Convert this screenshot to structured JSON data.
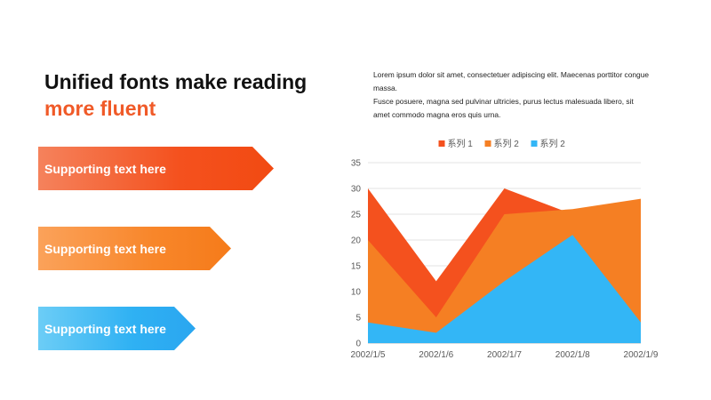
{
  "title": {
    "line1": "Unified fonts make reading",
    "line2": "more fluent"
  },
  "description": {
    "paragraph1": "Lorem ipsum dolor sit amet, consectetuer adipiscing elit. Maecenas porttitor congue massa.",
    "paragraph2": "Fusce posuere, magna sed pulvinar ultricies, purus lectus malesuada libero, sit amet commodo magna eros quis urna."
  },
  "arrows": [
    {
      "label": "Supporting text here",
      "color": "#f4511e"
    },
    {
      "label": "Supporting text here",
      "color": "#f8862a"
    },
    {
      "label": "Supporting text here",
      "color": "#2fb1f3"
    }
  ],
  "chart_data": {
    "type": "area",
    "title": "",
    "xlabel": "",
    "ylabel": "",
    "categories": [
      "2002/1/5",
      "2002/1/6",
      "2002/1/7",
      "2002/1/8",
      "2002/1/9"
    ],
    "ylim": [
      0,
      35
    ],
    "yticks": [
      0,
      5,
      10,
      15,
      20,
      25,
      30,
      35
    ],
    "grid": true,
    "legend_position": "top",
    "series": [
      {
        "name": "系列 1",
        "color": "#f4511e",
        "values": [
          30,
          12,
          30,
          25,
          25
        ]
      },
      {
        "name": "系列 2",
        "color": "#f57f23",
        "values": [
          20,
          5,
          25,
          26,
          28
        ]
      },
      {
        "name": "系列 2",
        "color": "#33b6f6",
        "values": [
          4,
          2,
          12,
          21,
          4
        ]
      }
    ]
  }
}
